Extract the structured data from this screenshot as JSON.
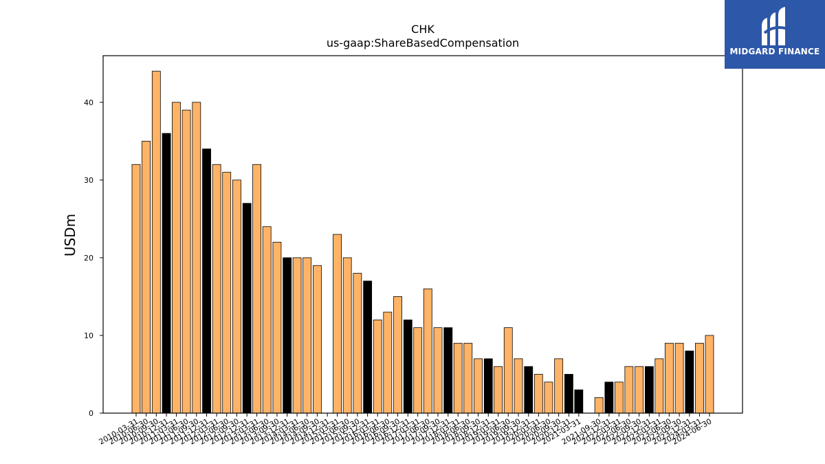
{
  "chart_data": {
    "type": "bar",
    "title": "CHK",
    "subtitle": "us-gaap:ShareBasedCompensation",
    "ylabel": "USDm",
    "xlabel": "",
    "ylim": [
      0,
      46
    ],
    "yticks": [
      0,
      10,
      20,
      30,
      40
    ],
    "grid": false,
    "colors": {
      "quarter": "#ffb366",
      "year_end": "#000000",
      "edge": "#000000"
    },
    "bars": [
      {
        "date": "2010-03-31",
        "value": 32,
        "kind": "quarter"
      },
      {
        "date": "2010-06-30",
        "value": 35,
        "kind": "quarter"
      },
      {
        "date": "2010-09-30",
        "value": 44,
        "kind": "quarter"
      },
      {
        "date": "2010-12-31",
        "value": 36,
        "kind": "year_end"
      },
      {
        "date": "2011-03-31",
        "value": 40,
        "kind": "quarter"
      },
      {
        "date": "2011-06-30",
        "value": 39,
        "kind": "quarter"
      },
      {
        "date": "2011-09-30",
        "value": 40,
        "kind": "quarter"
      },
      {
        "date": "2011-12-31",
        "value": 34,
        "kind": "year_end"
      },
      {
        "date": "2012-03-31",
        "value": 32,
        "kind": "quarter"
      },
      {
        "date": "2012-06-30",
        "value": 31,
        "kind": "quarter"
      },
      {
        "date": "2012-09-30",
        "value": 30,
        "kind": "quarter"
      },
      {
        "date": "2012-12-31",
        "value": 27,
        "kind": "year_end"
      },
      {
        "date": "2013-03-31",
        "value": 32,
        "kind": "quarter"
      },
      {
        "date": "2013-06-30",
        "value": 24,
        "kind": "quarter"
      },
      {
        "date": "2013-09-30",
        "value": 22,
        "kind": "quarter"
      },
      {
        "date": "2013-12-31",
        "value": 20,
        "kind": "year_end"
      },
      {
        "date": "2014-03-31",
        "value": 20,
        "kind": "quarter"
      },
      {
        "date": "2014-06-30",
        "value": 20,
        "kind": "quarter"
      },
      {
        "date": "2014-09-30",
        "value": 19,
        "kind": "quarter"
      },
      {
        "date": "2014-12-31",
        "value": 0,
        "kind": "year_end"
      },
      {
        "date": "2015-03-31",
        "value": 23,
        "kind": "quarter"
      },
      {
        "date": "2015-06-30",
        "value": 20,
        "kind": "quarter"
      },
      {
        "date": "2015-09-30",
        "value": 18,
        "kind": "quarter"
      },
      {
        "date": "2015-12-31",
        "value": 17,
        "kind": "year_end"
      },
      {
        "date": "2016-03-31",
        "value": 12,
        "kind": "quarter"
      },
      {
        "date": "2016-06-30",
        "value": 13,
        "kind": "quarter"
      },
      {
        "date": "2016-09-30",
        "value": 15,
        "kind": "quarter"
      },
      {
        "date": "2016-12-31",
        "value": 12,
        "kind": "year_end"
      },
      {
        "date": "2017-03-31",
        "value": 11,
        "kind": "quarter"
      },
      {
        "date": "2017-06-30",
        "value": 16,
        "kind": "quarter"
      },
      {
        "date": "2017-09-30",
        "value": 11,
        "kind": "quarter"
      },
      {
        "date": "2017-12-31",
        "value": 11,
        "kind": "year_end"
      },
      {
        "date": "2018-03-31",
        "value": 9,
        "kind": "quarter"
      },
      {
        "date": "2018-06-30",
        "value": 9,
        "kind": "quarter"
      },
      {
        "date": "2018-09-30",
        "value": 7,
        "kind": "quarter"
      },
      {
        "date": "2018-12-31",
        "value": 7,
        "kind": "year_end"
      },
      {
        "date": "2019-03-31",
        "value": 6,
        "kind": "quarter"
      },
      {
        "date": "2019-06-30",
        "value": 11,
        "kind": "quarter"
      },
      {
        "date": "2019-09-30",
        "value": 7,
        "kind": "quarter"
      },
      {
        "date": "2019-12-31",
        "value": 6,
        "kind": "year_end"
      },
      {
        "date": "2020-03-31",
        "value": 5,
        "kind": "quarter"
      },
      {
        "date": "2020-06-30",
        "value": 4,
        "kind": "quarter"
      },
      {
        "date": "2020-09-30",
        "value": 7,
        "kind": "quarter"
      },
      {
        "date": "2020-12-31",
        "value": 5,
        "kind": "year_end"
      },
      {
        "date": "2021-03-31",
        "value": 3,
        "kind": "year_end"
      },
      {
        "date": "2021-09-30",
        "value": 2,
        "kind": "quarter"
      },
      {
        "date": "2021-12-31",
        "value": 4,
        "kind": "year_end"
      },
      {
        "date": "2022-03-31",
        "value": 4,
        "kind": "quarter"
      },
      {
        "date": "2022-06-30",
        "value": 6,
        "kind": "quarter"
      },
      {
        "date": "2022-09-30",
        "value": 6,
        "kind": "quarter"
      },
      {
        "date": "2022-12-31",
        "value": 6,
        "kind": "year_end"
      },
      {
        "date": "2023-03-31",
        "value": 7,
        "kind": "quarter"
      },
      {
        "date": "2023-06-30",
        "value": 9,
        "kind": "quarter"
      },
      {
        "date": "2023-09-30",
        "value": 9,
        "kind": "quarter"
      },
      {
        "date": "2023-12-31",
        "value": 8,
        "kind": "year_end"
      },
      {
        "date": "2024-03-31",
        "value": 9,
        "kind": "quarter"
      },
      {
        "date": "2024-06-30",
        "value": 10,
        "kind": "quarter"
      }
    ]
  },
  "logo": {
    "brand_text": "MIDGARD FINANCE",
    "icon": "midgard-logo-icon",
    "background": "#2d57a8"
  }
}
